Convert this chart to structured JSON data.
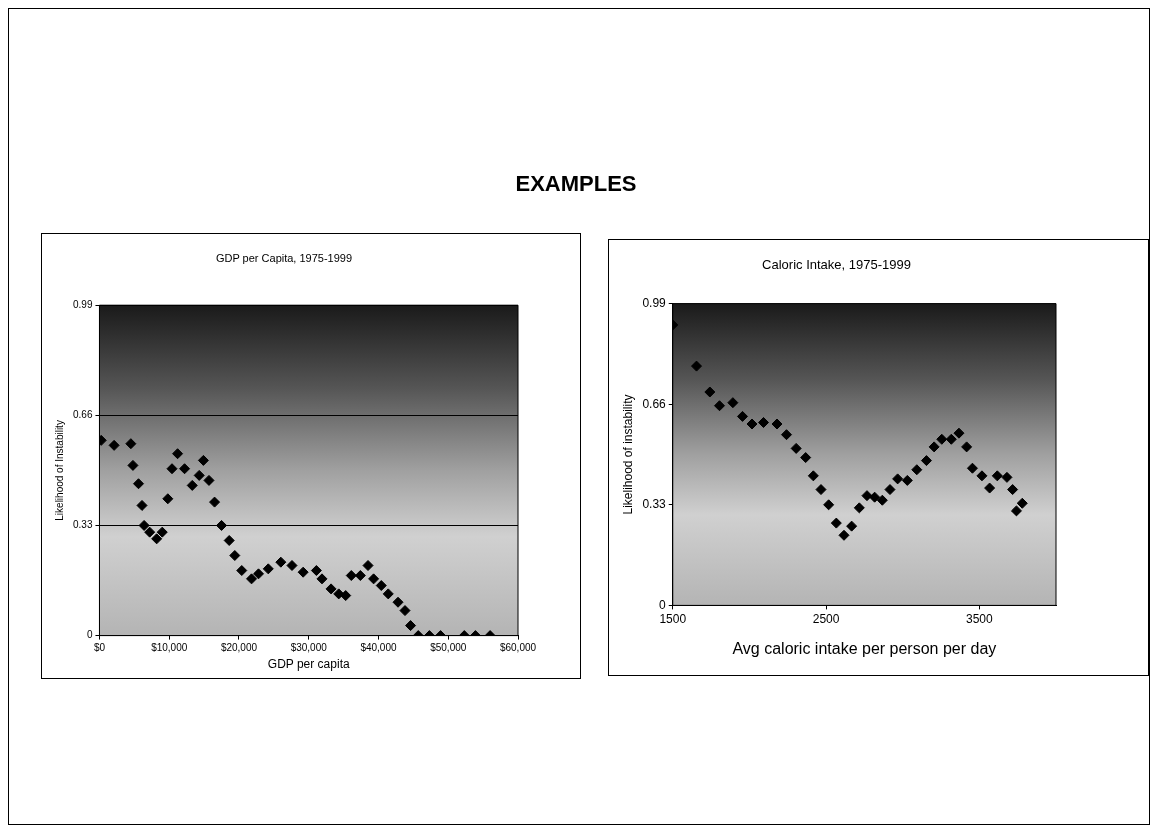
{
  "chart_data": [
    {
      "type": "other",
      "title": "EXAMPLES"
    },
    {
      "type": "scatter",
      "title": "GDP per Capita, 1975-1999",
      "xlabel": "GDP per capita",
      "ylabel": "Likelihood of Instability",
      "marker": "diamond",
      "grid": "y",
      "xlim": [
        0,
        60000
      ],
      "xticks": [
        {
          "value": 0,
          "label": "$0"
        },
        {
          "value": 10000,
          "label": "$10,000"
        },
        {
          "value": 20000,
          "label": "$20,000"
        },
        {
          "value": 30000,
          "label": "$30,000"
        },
        {
          "value": 40000,
          "label": "$40,000"
        },
        {
          "value": 50000,
          "label": "$50,000"
        },
        {
          "value": 60000,
          "label": "$60,000"
        }
      ],
      "ylim": [
        0,
        0.99
      ],
      "yticks": [
        0,
        0.33,
        0.66,
        0.99
      ],
      "series": [
        {
          "color": "#000000",
          "x": [
            250,
            2100,
            4500,
            4800,
            5600,
            6100,
            6400,
            7200,
            8200,
            9000,
            9800,
            10400,
            11200,
            12200,
            13300,
            14300,
            14900,
            15700,
            16500,
            17500,
            18600,
            19400,
            20400,
            21800,
            22800,
            24200,
            26000,
            27600,
            29200,
            31100,
            31900,
            33200,
            34300,
            35300,
            36100,
            37400,
            38500,
            39300,
            40400,
            41400,
            42800,
            43800,
            44600,
            45700,
            47300,
            48900,
            52300,
            53900,
            56000
          ],
          "values": [
            0.585,
            0.57,
            0.575,
            0.51,
            0.455,
            0.39,
            0.33,
            0.31,
            0.29,
            0.31,
            0.41,
            0.5,
            0.545,
            0.5,
            0.45,
            0.48,
            0.525,
            0.465,
            0.4,
            0.33,
            0.285,
            0.24,
            0.195,
            0.17,
            0.185,
            0.2,
            0.22,
            0.21,
            0.19,
            0.195,
            0.17,
            0.14,
            0.125,
            0.12,
            0.18,
            0.18,
            0.21,
            0.17,
            0.15,
            0.125,
            0.1,
            0.075,
            0.03,
            0,
            0,
            0,
            0,
            0,
            0
          ]
        }
      ]
    },
    {
      "type": "scatter",
      "title": "Caloric Intake, 1975-1999",
      "xlabel": "Avg caloric intake per person per day",
      "ylabel": "Likelihood of instability",
      "marker": "diamond",
      "xlim": [
        1500,
        4000
      ],
      "xticks": [
        1500,
        2500,
        3500
      ],
      "ylim": [
        0,
        0.99
      ],
      "yticks": [
        0,
        0.33,
        0.66,
        0.99
      ],
      "series": [
        {
          "color": "#000000",
          "x": [
            1500,
            1655,
            1742,
            1805,
            1892,
            1955,
            2017,
            2092,
            2180,
            2242,
            2305,
            2367,
            2417,
            2467,
            2517,
            2567,
            2617,
            2667,
            2717,
            2767,
            2817,
            2867,
            2917,
            2967,
            3030,
            3092,
            3155,
            3205,
            3255,
            3317,
            3367,
            3417,
            3455,
            3517,
            3567,
            3617,
            3680,
            3717,
            3742,
            3780
          ],
          "values": [
            0.92,
            0.785,
            0.7,
            0.655,
            0.665,
            0.62,
            0.595,
            0.6,
            0.595,
            0.56,
            0.515,
            0.485,
            0.425,
            0.38,
            0.33,
            0.27,
            0.23,
            0.26,
            0.32,
            0.36,
            0.355,
            0.345,
            0.38,
            0.415,
            0.41,
            0.445,
            0.475,
            0.52,
            0.545,
            0.545,
            0.565,
            0.52,
            0.45,
            0.425,
            0.385,
            0.425,
            0.42,
            0.38,
            0.31,
            0.335
          ]
        }
      ]
    }
  ]
}
